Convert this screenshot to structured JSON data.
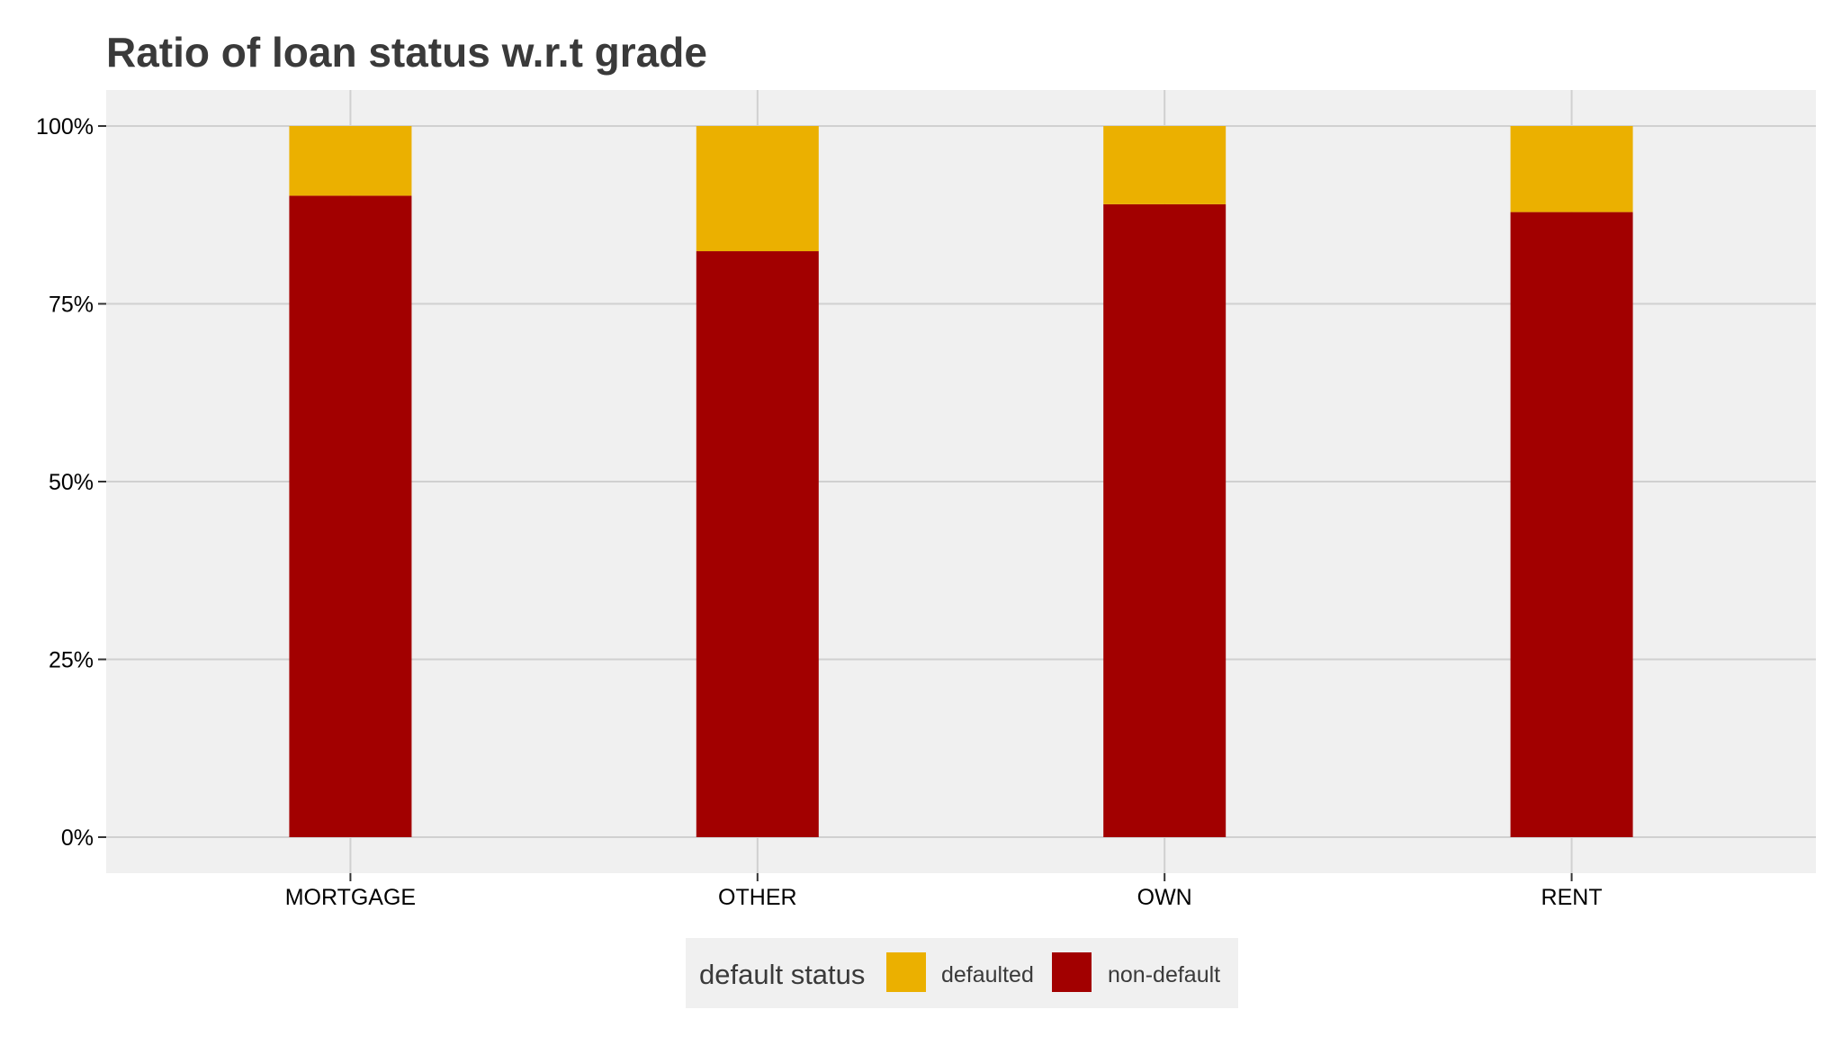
{
  "chart_data": {
    "type": "bar",
    "stacked": true,
    "title": "Ratio of loan status w.r.t grade",
    "xlabel": "",
    "ylabel": "",
    "categories": [
      "MORTGAGE",
      "OTHER",
      "OWN",
      "RENT"
    ],
    "series": [
      {
        "name": "non-default",
        "values": [
          0.902,
          0.824,
          0.89,
          0.879
        ]
      },
      {
        "name": "defaulted",
        "values": [
          0.098,
          0.176,
          0.11,
          0.121
        ]
      }
    ],
    "ylim": [
      0,
      1
    ],
    "yticks": [
      0,
      0.25,
      0.5,
      0.75,
      1
    ],
    "ytick_labels": [
      "0%",
      "25%",
      "50%",
      "75%",
      "100%"
    ],
    "grid": true,
    "legend": {
      "title": "default status",
      "placement": "bottom",
      "entries": [
        "defaulted",
        "non-default"
      ]
    },
    "colors": {
      "defaulted": "#ebb000",
      "non-default": "#a20000",
      "panel": "#f0f0f0",
      "grid": "#d0d0d0"
    }
  }
}
